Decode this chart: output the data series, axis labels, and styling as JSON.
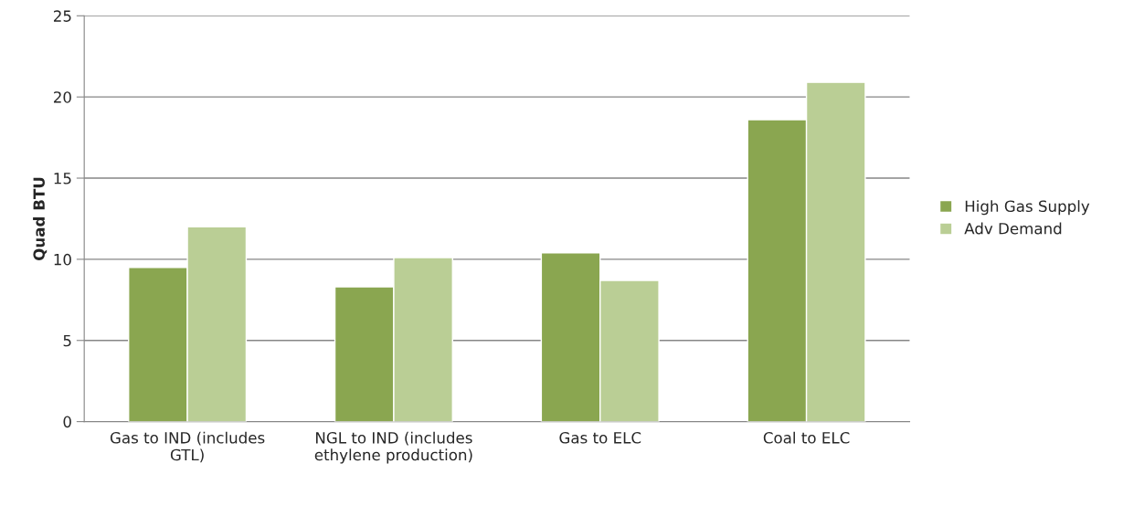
{
  "chart_data": {
    "type": "bar",
    "ylabel": "Quad BTU",
    "categories": [
      "Gas to IND (includes GTL)",
      "NGL to IND (includes ethylene production)",
      "Gas to ELC",
      "Coal to ELC"
    ],
    "series": [
      {
        "name": "High Gas Supply",
        "color": "#8aa650",
        "values": [
          9.5,
          8.3,
          10.4,
          18.6
        ]
      },
      {
        "name": "Adv Demand",
        "color": "#bace95",
        "values": [
          12.0,
          10.1,
          8.7,
          20.9
        ]
      }
    ],
    "ylim": [
      0,
      25
    ],
    "yticks": [
      0,
      5,
      10,
      15,
      20,
      25
    ],
    "grid": "y",
    "legend": "right"
  }
}
